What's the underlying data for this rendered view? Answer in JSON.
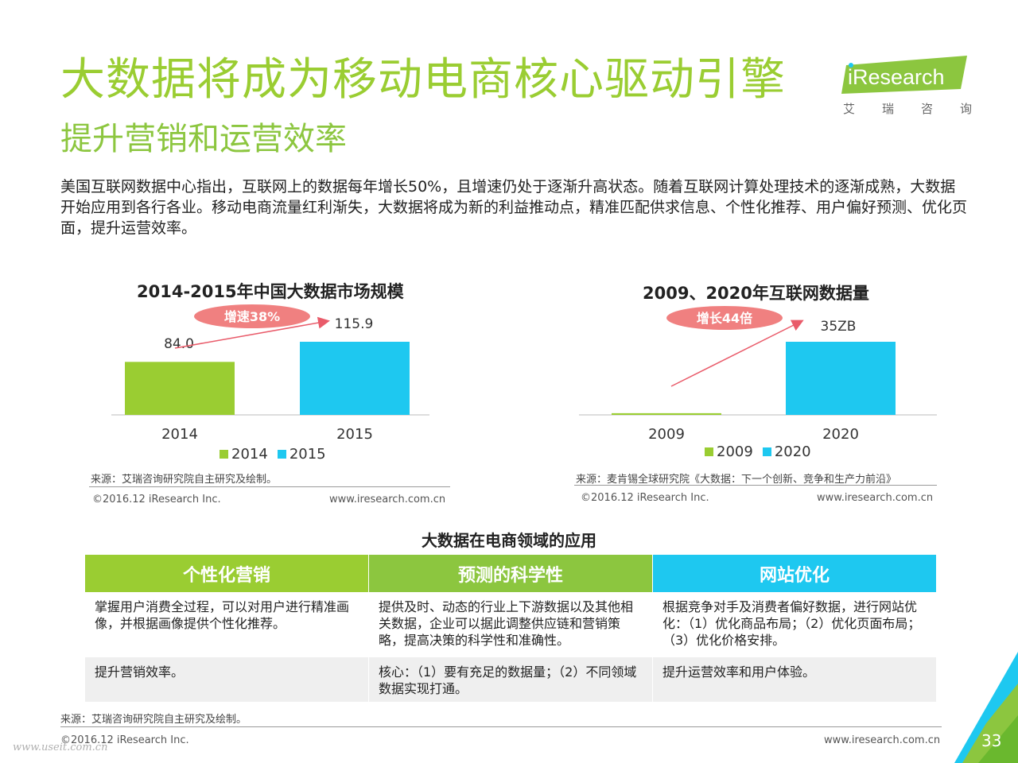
{
  "header": {
    "title": "大数据将成为移动电商核心驱动引擎",
    "subtitle": "提升营销和运营效率"
  },
  "logo": {
    "text": "iResearch",
    "cn_chars": [
      "艾",
      "瑞",
      "咨",
      "询"
    ],
    "color": "#8cc63f"
  },
  "intro": "美国互联网数据中心指出，互联网上的数据每年增长50%，且增速仍处于逐渐升高状态。随着互联网计算处理技术的逐渐成熟，大数据开始应用到各行各业。移动电商流量红利渐失，大数据将成为新的利益推动点，精准匹配供求信息、个性化推荐、用户偏好预测、优化页面，提升运营效率。",
  "chart_data": [
    {
      "type": "bar",
      "title": "2014-2015年中国大数据市场规模",
      "categories": [
        "2014",
        "2015"
      ],
      "values": [
        84.0,
        115.9
      ],
      "value_labels": [
        "84.0",
        "115.9"
      ],
      "legend": [
        "2014",
        "2015"
      ],
      "colors": [
        "#9acd32",
        "#1ec8f0"
      ],
      "annotation": "增速38%",
      "source": "来源：艾瑞咨询研究院自主研究及绘制。",
      "copyright": "©2016.12 iResearch Inc.",
      "url": "www.iresearch.com.cn"
    },
    {
      "type": "bar",
      "title": "2009、2020年互联网数据量",
      "categories": [
        "2009",
        "2020"
      ],
      "values": [
        0.8,
        35
      ],
      "value_labels": [
        "",
        "35ZB"
      ],
      "legend": [
        "2009",
        "2020"
      ],
      "colors": [
        "#9acd32",
        "#1ec8f0"
      ],
      "annotation": "增长44倍",
      "source": "来源：麦肯锡全球研究院《大数据：下一个创新、竞争和生产力前沿》",
      "copyright": "©2016.12 iResearch Inc.",
      "url": "www.iresearch.com.cn"
    }
  ],
  "applications": {
    "title": "大数据在电商领域的应用",
    "columns": [
      {
        "header": "个性化营销",
        "color": "#9acd32",
        "row1": "掌握用户消费全过程，可以对用户进行精准画像，并根据画像提供个性化推荐。",
        "row2": "提升营销效率。"
      },
      {
        "header": "预测的科学性",
        "color": "#8cc63f",
        "row1": "提供及时、动态的行业上下游数据以及其他相关数据，企业可以据此调整供应链和营销策略，提高决策的科学性和准确性。",
        "row2": "核心：（1）要有充足的数据量；（2）不同领域数据实现打通。"
      },
      {
        "header": "网站优化",
        "color": "#1ec8f0",
        "row1": "根据竞争对手及消费者偏好数据，进行网站优化：（1）优化商品布局；（2）优化页面布局；（3）优化价格安排。",
        "row2": "提升运营效率和用户体验。"
      }
    ]
  },
  "footer": {
    "source": "来源：艾瑞咨询研究院自主研究及绘制。",
    "copyright": "©2016.12 iResearch Inc.",
    "url": "www.iresearch.com.cn",
    "page_number": "33",
    "watermark": "www.useit.com.cn"
  }
}
